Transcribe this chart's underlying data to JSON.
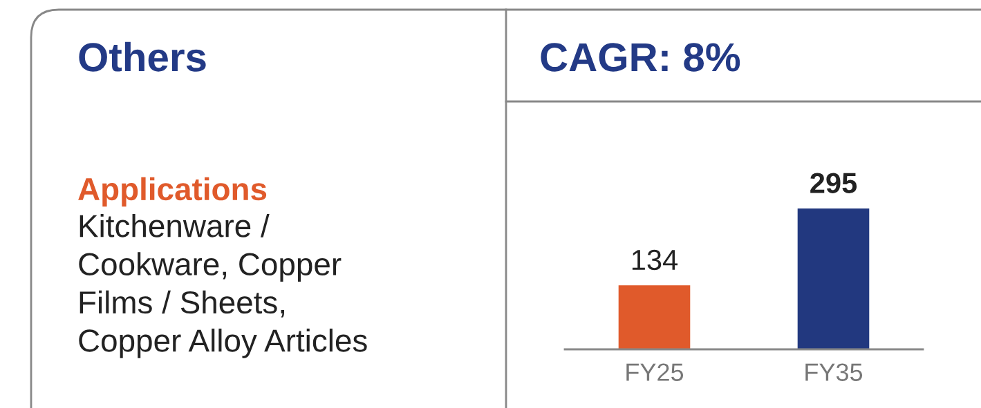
{
  "chart_data": [
    {
      "type": "other",
      "title": "Others",
      "annotations": [
        "Applications",
        "Kitchenware /\nCookware, Copper\nFilms / Sheets,\nCopper Alloy Articles"
      ]
    },
    {
      "type": "bar",
      "title": "CAGR: 8%",
      "categories": [
        "FY25",
        "FY35"
      ],
      "values": [
        134,
        295
      ],
      "colors": [
        "#e05a2b",
        "#22387f"
      ],
      "data_labels": true
    }
  ]
}
